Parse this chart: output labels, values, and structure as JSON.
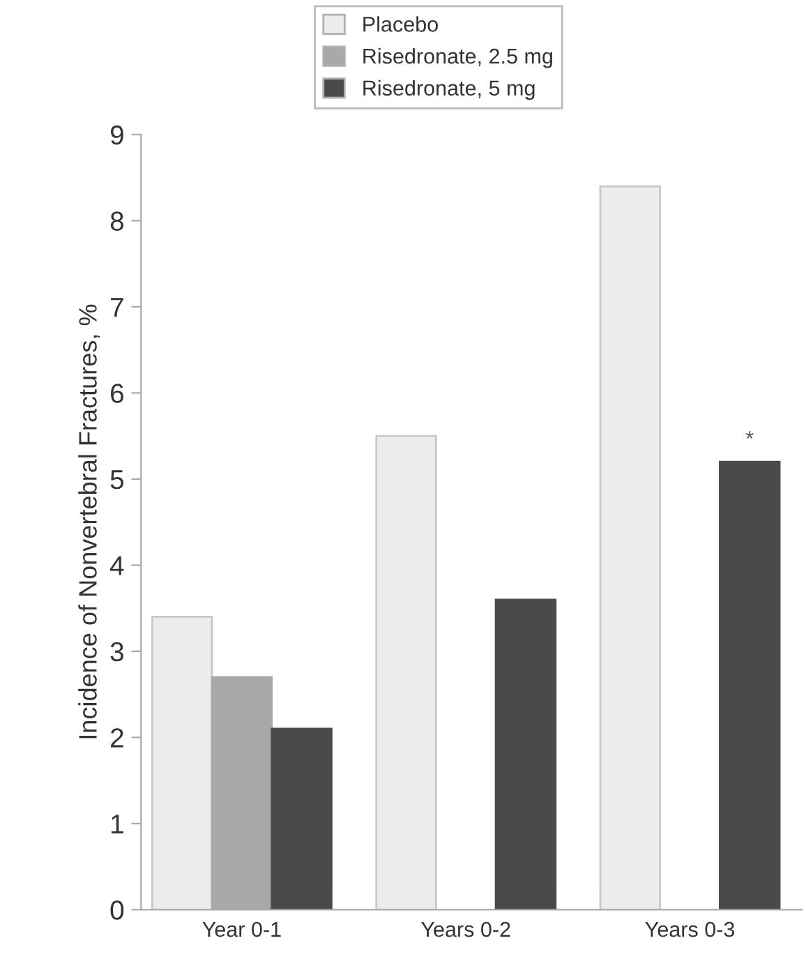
{
  "chart_data": {
    "type": "bar",
    "categories": [
      "Year 0-1",
      "Years 0-2",
      "Years 0-3"
    ],
    "series": [
      {
        "name": "Placebo",
        "color": "#ececec",
        "values": [
          3.4,
          5.5,
          8.4
        ]
      },
      {
        "name": "Risedronate, 2.5 mg",
        "color": "#a9a9a9",
        "values": [
          2.7,
          null,
          null
        ]
      },
      {
        "name": "Risedronate, 5 mg",
        "color": "#4a4a4a",
        "values": [
          2.1,
          3.6,
          5.2
        ]
      }
    ],
    "ylabel": "Incidence of Nonvertebral Fractures, %",
    "ylim": [
      0,
      9
    ],
    "yticks": [
      0,
      1,
      2,
      3,
      4,
      5,
      6,
      7,
      8,
      9
    ],
    "annotations": [
      "*"
    ],
    "legend": "top",
    "grid": false
  }
}
